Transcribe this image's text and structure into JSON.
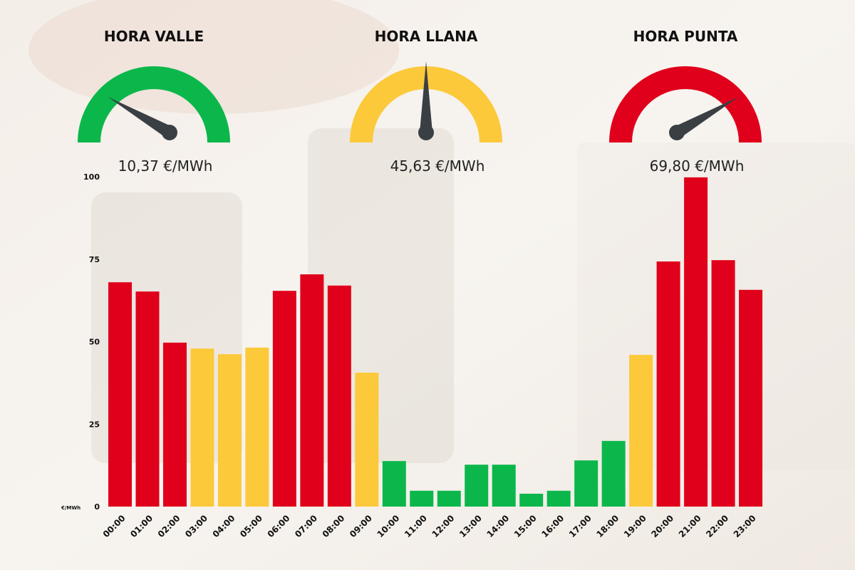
{
  "gauges": [
    {
      "title": "HORA VALLE",
      "value_label": "10,37 €/MWh",
      "color": "#0bb74b"
    },
    {
      "title": "HORA LLANA",
      "value_label": "45,63 €/MWh",
      "color": "#fcc93b"
    },
    {
      "title": "HORA PUNTA",
      "value_label": "69,80 €/MWh",
      "color": "#e0001b"
    }
  ],
  "chart_data": {
    "type": "bar",
    "y_unit": "€/MWh",
    "categories": [
      "00:00",
      "01:00",
      "02:00",
      "03:00",
      "04:00",
      "05:00",
      "06:00",
      "07:00",
      "08:00",
      "09:00",
      "10:00",
      "11:00",
      "12:00",
      "13:00",
      "14:00",
      "15:00",
      "16:00",
      "17:00",
      "18:00",
      "19:00",
      "20:00",
      "21:00",
      "22:00",
      "23:00"
    ],
    "values": [
      68.0,
      65.2,
      49.7,
      47.9,
      46.2,
      48.2,
      65.4,
      70.4,
      67.0,
      40.6,
      13.8,
      4.8,
      4.8,
      12.7,
      12.7,
      3.9,
      4.8,
      14.0,
      19.9,
      46.0,
      74.3,
      99.8,
      74.7,
      65.7
    ],
    "colors": [
      "#e0001b",
      "#e0001b",
      "#e0001b",
      "#fcc93b",
      "#fcc93b",
      "#fcc93b",
      "#e0001b",
      "#e0001b",
      "#e0001b",
      "#fcc93b",
      "#0bb74b",
      "#0bb74b",
      "#0bb74b",
      "#0bb74b",
      "#0bb74b",
      "#0bb74b",
      "#0bb74b",
      "#0bb74b",
      "#0bb74b",
      "#fcc93b",
      "#e0001b",
      "#e0001b",
      "#e0001b",
      "#e0001b"
    ],
    "ylim": [
      0,
      100
    ],
    "yticks": [
      0,
      25,
      50,
      75,
      100
    ]
  }
}
